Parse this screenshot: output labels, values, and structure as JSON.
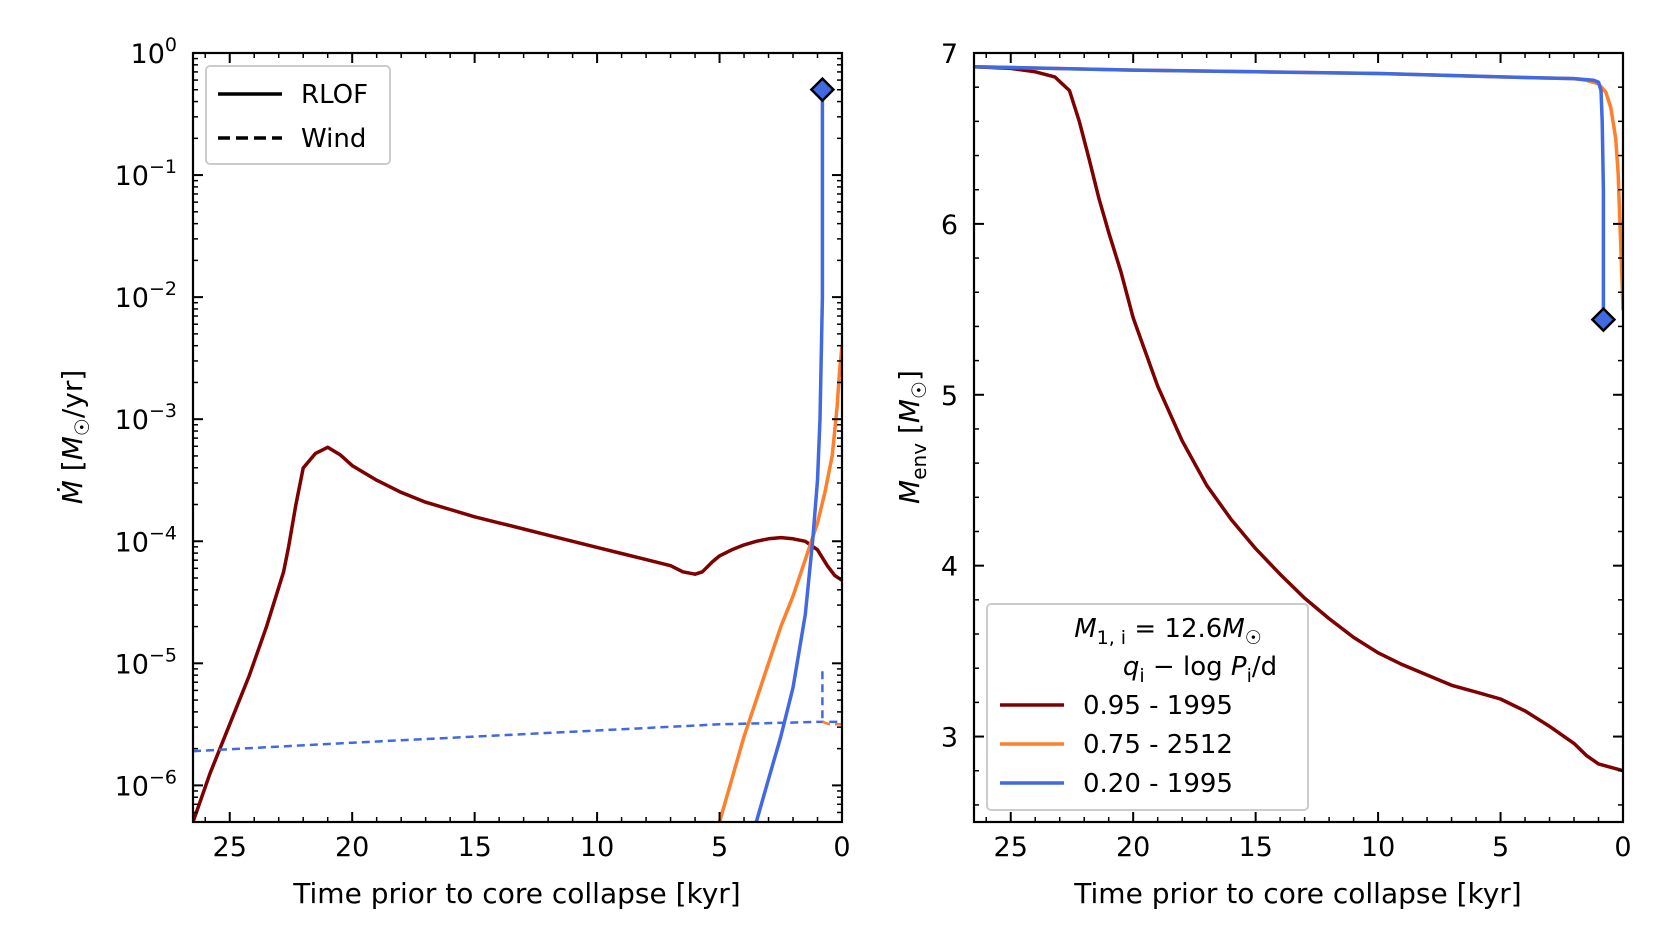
{
  "colors": {
    "dark_red": "#7f0000",
    "orange": "#ff7f2a",
    "blue": "#4169e1",
    "legend_border": "#cccccc"
  },
  "chart_data": [
    {
      "type": "line",
      "panel": "left",
      "xlabel": "Time prior to core collapse [kyr]",
      "ylabel": "Ṁ [M☉/yr]",
      "xlim": [
        26.5,
        0
      ],
      "ylim_log10": [
        -6.3,
        0
      ],
      "yscale": "log",
      "xticks": [
        25,
        20,
        15,
        10,
        5,
        0
      ],
      "xtick_labels": [
        "25",
        "20",
        "15",
        "10",
        "5",
        "0"
      ],
      "yticks_log10": [
        0,
        -1,
        -2,
        -3,
        -4,
        -5,
        -6
      ],
      "ytick_labels": [
        "10",
        "10",
        "10",
        "10",
        "10",
        "10",
        "10"
      ],
      "ytick_exponents": [
        "0",
        "−1",
        "−2",
        "−3",
        "−4",
        "−5",
        "−6"
      ],
      "legend": {
        "position": "top-left",
        "entries": [
          {
            "label": "RLOF",
            "linestyle": "solid"
          },
          {
            "label": "Wind",
            "linestyle": "dashed"
          }
        ]
      },
      "series": [
        {
          "color": "#7f0000",
          "linestyle": "solid",
          "x": [
            26.5,
            25.8,
            25.0,
            24.2,
            23.5,
            22.8,
            22.6,
            22.3,
            22.0,
            21.5,
            21.0,
            20.5,
            20.0,
            19.0,
            18.0,
            17.0,
            16.0,
            15.0,
            14.0,
            13.0,
            12.0,
            11.0,
            10.0,
            9.0,
            8.0,
            7.0,
            6.5,
            6.0,
            5.7,
            5.3,
            5.0,
            4.5,
            4.0,
            3.5,
            3.0,
            2.5,
            2.0,
            1.5,
            1.0,
            0.6,
            0.3,
            0.0
          ],
          "y_log10": [
            -6.3,
            -5.9,
            -5.5,
            -5.1,
            -4.7,
            -4.25,
            -4.05,
            -3.7,
            -3.4,
            -3.28,
            -3.23,
            -3.29,
            -3.38,
            -3.5,
            -3.6,
            -3.68,
            -3.74,
            -3.8,
            -3.85,
            -3.9,
            -3.95,
            -4.0,
            -4.05,
            -4.1,
            -4.15,
            -4.2,
            -4.25,
            -4.27,
            -4.25,
            -4.17,
            -4.12,
            -4.07,
            -4.03,
            -4.0,
            -3.98,
            -3.97,
            -3.98,
            -4.0,
            -4.07,
            -4.2,
            -4.28,
            -4.32
          ]
        },
        {
          "color": "#ff7f2a",
          "linestyle": "solid",
          "x": [
            5.0,
            4.5,
            4.0,
            3.5,
            3.0,
            2.5,
            2.0,
            1.5,
            1.0,
            0.7,
            0.4,
            0.2,
            0.1,
            0.0
          ],
          "y_log10": [
            -6.3,
            -5.95,
            -5.6,
            -5.3,
            -5.0,
            -4.7,
            -4.45,
            -4.15,
            -3.85,
            -3.6,
            -3.3,
            -2.9,
            -2.6,
            -2.4
          ]
        },
        {
          "color": "#4169e1",
          "linestyle": "solid",
          "x": [
            5.0,
            3.5,
            3.0,
            2.5,
            2.0,
            1.5,
            1.2,
            1.0,
            0.9,
            0.8,
            0.8
          ],
          "y_log10": [
            -6.9,
            -6.3,
            -5.95,
            -5.6,
            -5.2,
            -4.6,
            -4.0,
            -3.5,
            -3.0,
            -2.0,
            -0.3
          ]
        },
        {
          "color": "#4169e1",
          "linestyle": "dashed",
          "x": [
            26.5,
            20.0,
            15.0,
            10.0,
            5.0,
            1.0,
            0.0
          ],
          "y_log10": [
            -5.72,
            -5.65,
            -5.6,
            -5.55,
            -5.5,
            -5.48,
            -5.48
          ]
        },
        {
          "color": "#4169e1",
          "linestyle": "dashed",
          "x": [
            0.8,
            0.8
          ],
          "y_log10": [
            -5.45,
            -5.04
          ]
        },
        {
          "color": "#ff7f2a",
          "linestyle": "dashed",
          "x": [
            0.8,
            0.5,
            0.0
          ],
          "y_log10": [
            -5.48,
            -5.5,
            -5.5
          ]
        }
      ],
      "markers": [
        {
          "color": "#4169e1",
          "shape": "diamond",
          "x": 0.8,
          "y_log10": -0.3
        }
      ]
    },
    {
      "type": "line",
      "panel": "right",
      "xlabel": "Time prior to core collapse [kyr]",
      "ylabel": "Menv [M☉]",
      "xlim": [
        26.5,
        0
      ],
      "ylim": [
        2.5,
        7
      ],
      "xticks": [
        25,
        20,
        15,
        10,
        5,
        0
      ],
      "xtick_labels": [
        "25",
        "20",
        "15",
        "10",
        "5",
        "0"
      ],
      "yticks": [
        3,
        4,
        5,
        6,
        7
      ],
      "ytick_labels": [
        "3",
        "4",
        "5",
        "6",
        "7"
      ],
      "legend": {
        "position": "lower-left",
        "title_line1": "M1,i = 12.6M☉",
        "title_line2": "qi − log Pi/d",
        "entries": [
          {
            "label": "0.95 - 1995",
            "color": "#7f0000"
          },
          {
            "label": "0.75 - 2512",
            "color": "#ff7f2a"
          },
          {
            "label": "0.20 - 1995",
            "color": "#4169e1"
          }
        ]
      },
      "series": [
        {
          "color": "#7f0000",
          "x": [
            26.5,
            25.0,
            24.0,
            23.2,
            22.6,
            22.2,
            21.8,
            21.4,
            21.0,
            20.5,
            20.0,
            19.0,
            18.0,
            17.0,
            16.0,
            15.0,
            14.0,
            13.0,
            12.0,
            11.0,
            10.0,
            9.0,
            8.0,
            7.0,
            6.0,
            5.0,
            4.0,
            3.0,
            2.0,
            1.5,
            1.0,
            0.5,
            0.0
          ],
          "y": [
            6.92,
            6.91,
            6.89,
            6.86,
            6.78,
            6.6,
            6.38,
            6.15,
            5.95,
            5.72,
            5.45,
            5.05,
            4.73,
            4.47,
            4.27,
            4.1,
            3.95,
            3.81,
            3.69,
            3.58,
            3.49,
            3.42,
            3.36,
            3.3,
            3.26,
            3.22,
            3.15,
            3.06,
            2.96,
            2.89,
            2.84,
            2.82,
            2.8
          ]
        },
        {
          "color": "#ff7f2a",
          "x": [
            26.5,
            20.0,
            15.0,
            10.0,
            5.0,
            2.0,
            1.5,
            1.0,
            0.7,
            0.5,
            0.3,
            0.2,
            0.1,
            0.0
          ],
          "y": [
            6.92,
            6.9,
            6.89,
            6.88,
            6.86,
            6.85,
            6.84,
            6.82,
            6.77,
            6.68,
            6.5,
            6.3,
            5.9,
            5.5
          ]
        },
        {
          "color": "#4169e1",
          "x": [
            26.5,
            20.0,
            15.0,
            10.0,
            5.0,
            2.0,
            1.2,
            1.0,
            0.9,
            0.85,
            0.8,
            0.8
          ],
          "y": [
            6.92,
            6.9,
            6.89,
            6.88,
            6.86,
            6.85,
            6.84,
            6.83,
            6.78,
            6.6,
            6.2,
            5.5
          ]
        }
      ],
      "markers": [
        {
          "color": "#4169e1",
          "shape": "diamond",
          "x": 0.8,
          "y": 5.44
        }
      ]
    }
  ]
}
